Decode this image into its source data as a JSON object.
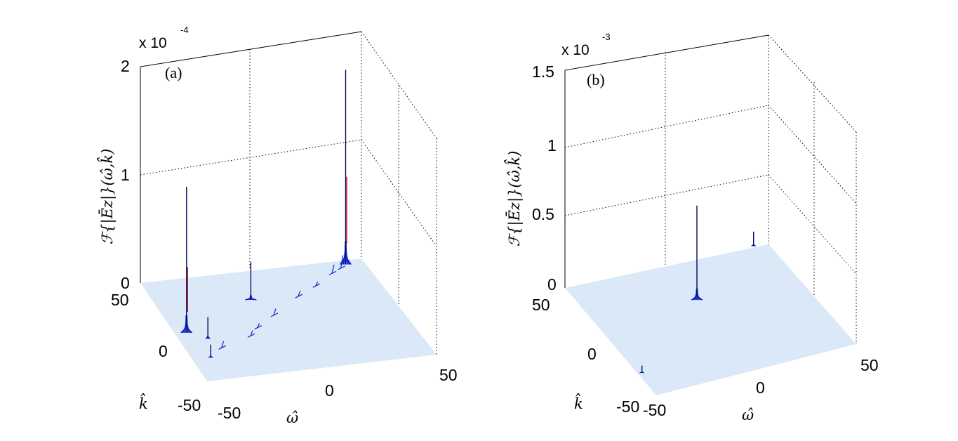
{
  "chart_data": [
    {
      "type": "surface3d",
      "panel_label": "(a)",
      "zlabel": "ℱ{|Ēz|}(ω̂,k̂)",
      "xlabel": "ω̂",
      "ylabel": "k̂",
      "x_ticks": [
        "-50",
        "0",
        "50"
      ],
      "y_ticks": [
        "-50",
        "0",
        "50"
      ],
      "z_ticks": [
        "0",
        "1",
        "2"
      ],
      "z_exponent_base": "x 10",
      "z_exponent": "-4",
      "xlim": [
        -50,
        50
      ],
      "ylim": [
        -50,
        50
      ],
      "zlim": [
        0,
        2
      ],
      "grid": true,
      "peaks": [
        {
          "omega": -45,
          "k": -2,
          "z": 1.35
        },
        {
          "omega": 38,
          "k": 45,
          "z": 1.8
        },
        {
          "omega": -10,
          "k": 22,
          "z": 0.35
        },
        {
          "omega": -38,
          "k": -10,
          "z": 0.2
        },
        {
          "omega": -42,
          "k": -28,
          "z": 0.12
        }
      ],
      "floor_color": "#dbe8f8",
      "peak_color": "#1020d0"
    },
    {
      "type": "surface3d",
      "panel_label": "(b)",
      "zlabel": "ℱ{|Ēz|}(ω̂,k̂)",
      "xlabel": "ω̂",
      "ylabel": "k̂",
      "x_ticks": [
        "-50",
        "0",
        "50"
      ],
      "y_ticks": [
        "-50",
        "0",
        "50"
      ],
      "z_ticks": [
        "0",
        "0.5",
        "1",
        "1.5"
      ],
      "z_exponent_base": "x 10",
      "z_exponent": "-3",
      "xlim": [
        -50,
        50
      ],
      "ylim": [
        -50,
        50
      ],
      "zlim": [
        0,
        1.5
      ],
      "grid": true,
      "peaks": [
        {
          "omega": 0,
          "k": 15,
          "z": 0.65
        },
        {
          "omega": 42,
          "k": 45,
          "z": 0.1
        },
        {
          "omega": -48,
          "k": -30,
          "z": 0.05
        }
      ],
      "floor_color": "#dbe8f8",
      "peak_color": "#1020d0"
    }
  ]
}
